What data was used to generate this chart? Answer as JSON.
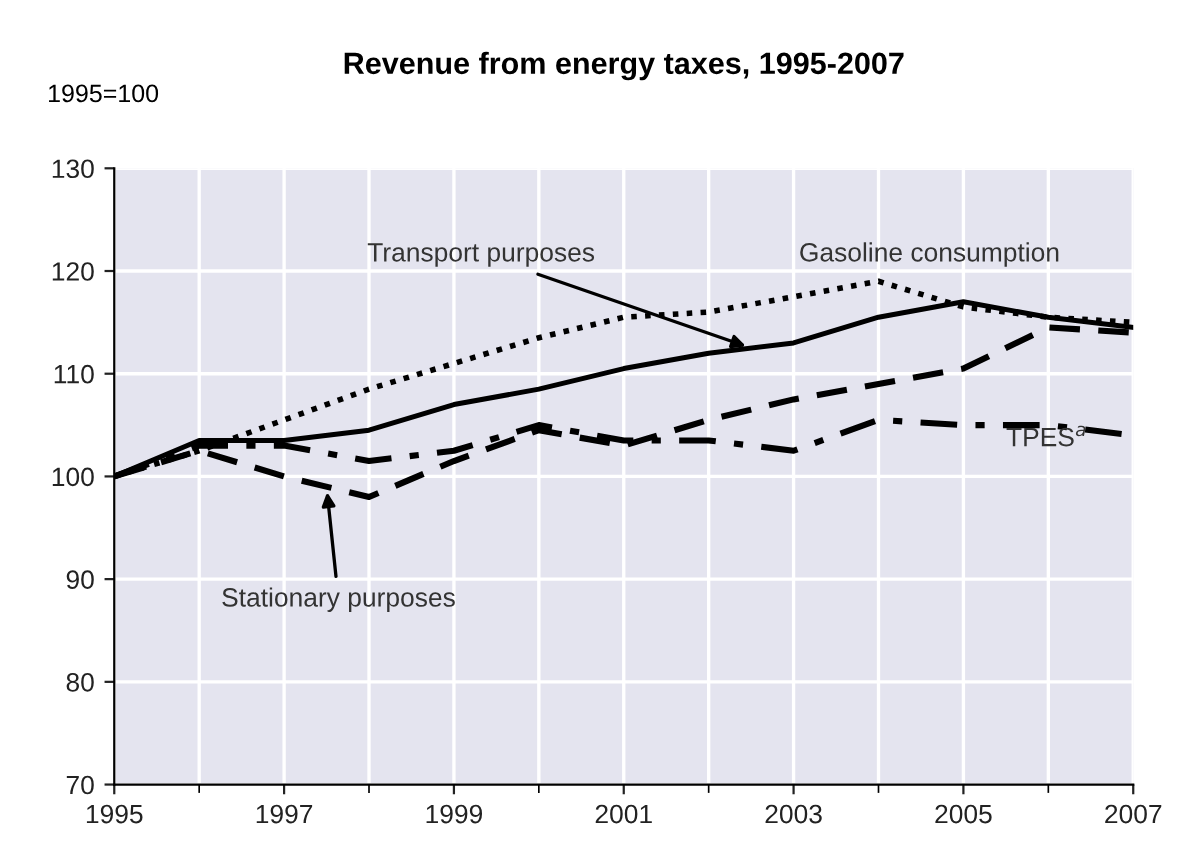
{
  "chart_data": {
    "type": "line",
    "title": "Revenue from energy taxes, 1995-2007",
    "ylabel": "1995=100",
    "x": [
      1995,
      1996,
      1997,
      1998,
      1999,
      2000,
      2001,
      2002,
      2003,
      2004,
      2005,
      2006,
      2007
    ],
    "xlim": [
      1995,
      2007
    ],
    "xticks": [
      1995,
      1997,
      1999,
      2001,
      2003,
      2005,
      2007
    ],
    "ylim": [
      70,
      130
    ],
    "yticks": [
      70,
      80,
      90,
      100,
      110,
      120,
      130
    ],
    "grid": true,
    "legend": false,
    "marker": "none",
    "series": [
      {
        "name": "Transport purposes",
        "color": "#000000",
        "line_style": "solid",
        "values": [
          100,
          103.5,
          103.5,
          104.5,
          107,
          108.5,
          110.5,
          112,
          113,
          115.5,
          117,
          115.5,
          114.5
        ]
      },
      {
        "name": "Gasoline consumption",
        "color": "#000000",
        "line_style": "dotted",
        "values": [
          100,
          102.5,
          105.5,
          108.5,
          111,
          113.5,
          115.5,
          116,
          117.5,
          119,
          116.5,
          115.5,
          115
        ]
      },
      {
        "name": "TPES$^{a}$",
        "color": "#000000",
        "line_style": "dashdot",
        "values": [
          100,
          103,
          103,
          101.5,
          102.5,
          105,
          103.5,
          103.5,
          102.5,
          105.5,
          105,
          105,
          104
        ]
      },
      {
        "name": "Stationary purposes",
        "color": "#000000",
        "line_style": "dashed",
        "values": [
          100,
          102.5,
          100,
          98,
          101.5,
          104.5,
          103,
          105.5,
          107.5,
          109,
          110.5,
          114.5,
          114
        ]
      }
    ]
  }
}
